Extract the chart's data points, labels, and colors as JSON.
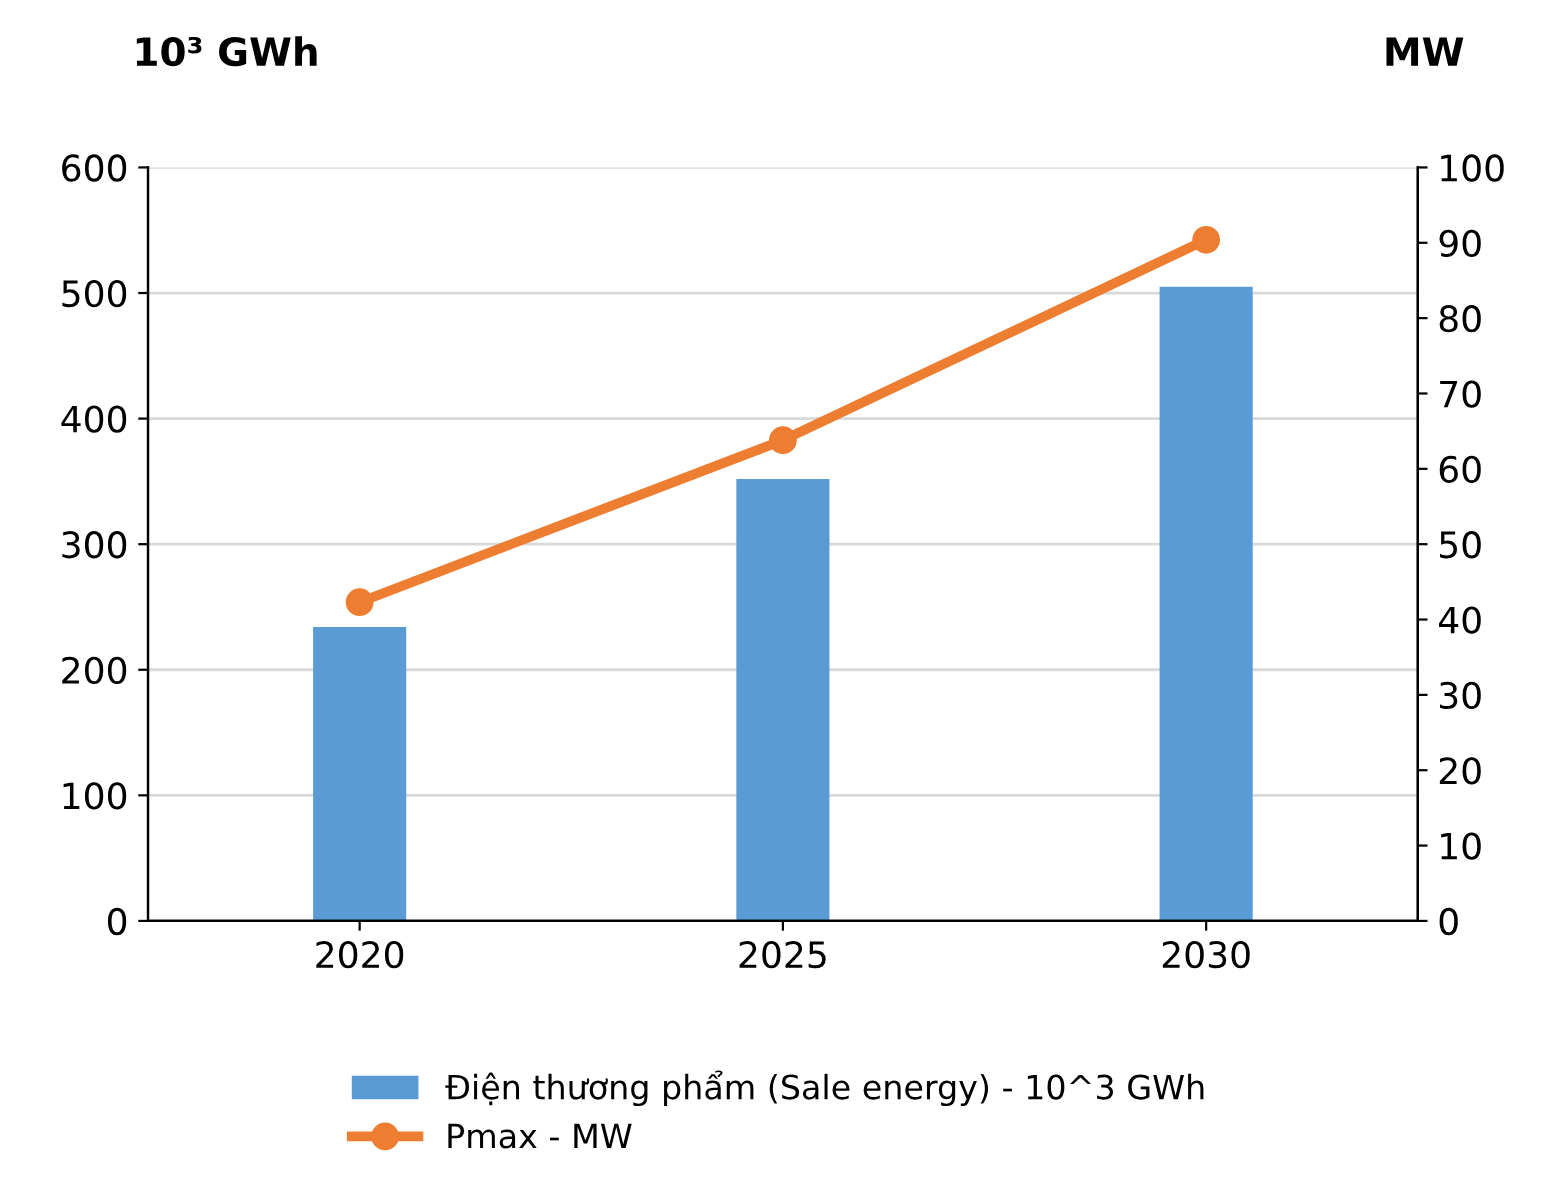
{
  "chart_data": {
    "type": "bar",
    "categories": [
      "2020",
      "2025",
      "2030"
    ],
    "ylabel": "10³ GWh",
    "y2label": "MW",
    "series": [
      {
        "name": "Điện thương phẩm (Sale energy) - 10^3 GWh",
        "color": "#5b9bd5",
        "values": [
          234,
          352,
          505
        ]
      },
      {
        "name": "Pmax - MW",
        "type": "line",
        "axis": "y2",
        "color": "#ed7d31",
        "marker": "circle",
        "values": [
          42.3,
          63.8,
          90.4
        ]
      }
    ],
    "ylim": [
      0,
      600
    ],
    "yticks": [
      0,
      100,
      200,
      300,
      400,
      500,
      600
    ],
    "y2lim": [
      0,
      100
    ],
    "y2ticks": [
      0,
      10,
      20,
      30,
      40,
      50,
      60,
      70,
      80,
      90,
      100
    ],
    "grid": "y",
    "legend": "bottom"
  }
}
